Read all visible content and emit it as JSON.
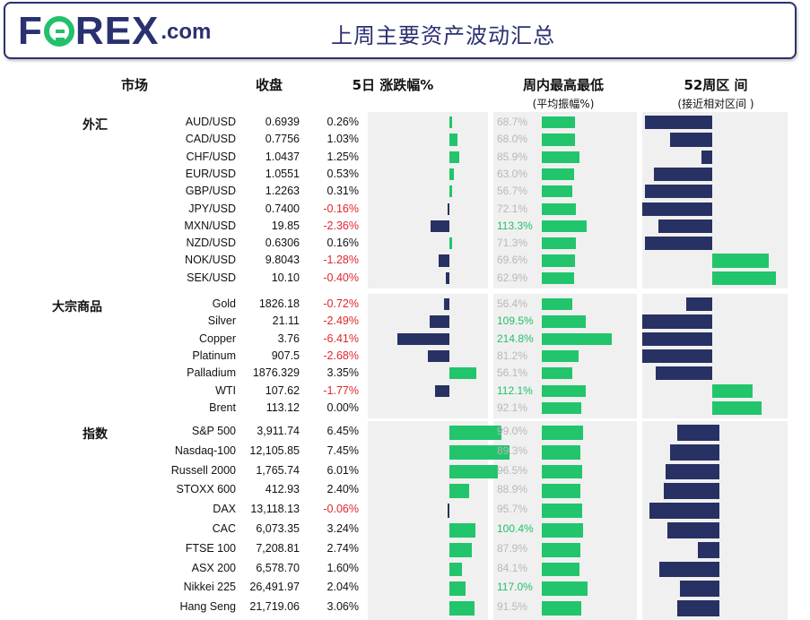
{
  "banner": {
    "logo_main": "FOREX",
    "logo_suffix": ".com",
    "title": "上周主要资产波动汇总"
  },
  "headers": {
    "market": "市场",
    "close": "收盘",
    "change": "5日 涨跌幅%",
    "range": "周内最高最低",
    "range_sub": "(平均振幅%)",
    "week52": "52周区 间",
    "week52_sub": "(接近相对区间 )"
  },
  "colors": {
    "positive_bar": "#22c56b",
    "negative_bar": "#283163",
    "negative_text": "#e0262c",
    "highlight_text": "#22c06a",
    "muted_text": "#b8b8b8",
    "brand": "#2a3170"
  },
  "chart_data": {
    "type": "table",
    "sections": [
      {
        "label": "外汇",
        "rows": [
          {
            "name": "AUD/USD",
            "close": "0.6939",
            "change": "0.26%",
            "change_value": 0.26,
            "range_label": "68.7%",
            "range_value": 68.7,
            "range_highlight": false,
            "w52_start": 0.02,
            "w52_end": 0.48
          },
          {
            "name": "CAD/USD",
            "close": "0.7756",
            "change": "1.03%",
            "change_value": 1.03,
            "range_label": "68.0%",
            "range_value": 68.0,
            "range_highlight": false,
            "w52_start": 0.19,
            "w52_end": 0.48
          },
          {
            "name": "CHF/USD",
            "close": "1.0437",
            "change": "1.25%",
            "change_value": 1.25,
            "range_label": "85.9%",
            "range_value": 85.9,
            "range_highlight": false,
            "w52_start": 0.41,
            "w52_end": 0.48
          },
          {
            "name": "EUR/USD",
            "close": "1.0551",
            "change": "0.53%",
            "change_value": 0.53,
            "range_label": "63.0%",
            "range_value": 63.0,
            "range_highlight": false,
            "w52_start": 0.08,
            "w52_end": 0.48
          },
          {
            "name": "GBP/USD",
            "close": "1.2263",
            "change": "0.31%",
            "change_value": 0.31,
            "range_label": "56.7%",
            "range_value": 56.7,
            "range_highlight": false,
            "w52_start": 0.02,
            "w52_end": 0.48
          },
          {
            "name": "JPY/USD",
            "close": "0.7400",
            "change": "-0.16%",
            "change_value": -0.16,
            "range_label": "72.1%",
            "range_value": 72.1,
            "range_highlight": false,
            "w52_start": 0.0,
            "w52_end": 0.48
          },
          {
            "name": "MXN/USD",
            "close": "19.85",
            "change": "-2.36%",
            "change_value": -2.36,
            "range_label": "113.3%",
            "range_value": 113.3,
            "range_highlight": true,
            "w52_start": 0.11,
            "w52_end": 0.48
          },
          {
            "name": "NZD/USD",
            "close": "0.6306",
            "change": "0.16%",
            "change_value": 0.16,
            "range_label": "71.3%",
            "range_value": 71.3,
            "range_highlight": false,
            "w52_start": 0.02,
            "w52_end": 0.48
          },
          {
            "name": "NOK/USD",
            "close": "9.8043",
            "change": "-1.28%",
            "change_value": -1.28,
            "range_label": "69.6%",
            "range_value": 69.6,
            "range_highlight": false,
            "w52_start": 0.48,
            "w52_end": 0.87
          },
          {
            "name": "SEK/USD",
            "close": "10.10",
            "change": "-0.40%",
            "change_value": -0.4,
            "range_label": "62.9%",
            "range_value": 62.9,
            "range_highlight": false,
            "w52_start": 0.48,
            "w52_end": 0.92
          }
        ]
      },
      {
        "label": "大宗商品",
        "rows": [
          {
            "name": "Gold",
            "close": "1826.18",
            "change": "-0.72%",
            "change_value": -0.72,
            "range_label": "56.4%",
            "range_value": 56.4,
            "range_highlight": false,
            "w52_start": 0.3,
            "w52_end": 0.48
          },
          {
            "name": "Silver",
            "close": "21.11",
            "change": "-2.49%",
            "change_value": -2.49,
            "range_label": "109.5%",
            "range_value": 109.5,
            "range_highlight": true,
            "w52_start": 0.0,
            "w52_end": 0.48
          },
          {
            "name": "Copper",
            "close": "3.76",
            "change": "-6.41%",
            "change_value": -6.41,
            "range_label": "214.8%",
            "range_value": 214.8,
            "range_highlight": true,
            "w52_start": 0.0,
            "w52_end": 0.48
          },
          {
            "name": "Platinum",
            "close": "907.5",
            "change": "-2.68%",
            "change_value": -2.68,
            "range_label": "81.2%",
            "range_value": 81.2,
            "range_highlight": false,
            "w52_start": 0.0,
            "w52_end": 0.48
          },
          {
            "name": "Palladium",
            "close": "1876.329",
            "change": "3.35%",
            "change_value": 3.35,
            "range_label": "56.1%",
            "range_value": 56.1,
            "range_highlight": false,
            "w52_start": 0.09,
            "w52_end": 0.48
          },
          {
            "name": "WTI",
            "close": "107.62",
            "change": "-1.77%",
            "change_value": -1.77,
            "range_label": "112.1%",
            "range_value": 112.1,
            "range_highlight": true,
            "w52_start": 0.48,
            "w52_end": 0.76
          },
          {
            "name": "Brent",
            "close": "113.12",
            "change": "0.00%",
            "change_value": 0.0,
            "range_label": "92.1%",
            "range_value": 92.1,
            "range_highlight": false,
            "w52_start": 0.48,
            "w52_end": 0.82
          }
        ]
      },
      {
        "label": "指数",
        "rows": [
          {
            "name": "S&P 500",
            "close": "3,911.74",
            "change": "6.45%",
            "change_value": 6.45,
            "range_label": "99.0%",
            "range_value": 99.0,
            "range_highlight": false,
            "w52_start": 0.24,
            "w52_end": 0.53
          },
          {
            "name": "Nasdaq-100",
            "close": "12,105.85",
            "change": "7.45%",
            "change_value": 7.45,
            "range_label": "89.3%",
            "range_value": 89.3,
            "range_highlight": false,
            "w52_start": 0.19,
            "w52_end": 0.53
          },
          {
            "name": "Russell 2000",
            "close": "1,765.74",
            "change": "6.01%",
            "change_value": 6.01,
            "range_label": "96.5%",
            "range_value": 96.5,
            "range_highlight": false,
            "w52_start": 0.16,
            "w52_end": 0.53
          },
          {
            "name": "STOXX 600",
            "close": "412.93",
            "change": "2.40%",
            "change_value": 2.4,
            "range_label": "88.9%",
            "range_value": 88.9,
            "range_highlight": false,
            "w52_start": 0.15,
            "w52_end": 0.53
          },
          {
            "name": "DAX",
            "close": "13,118.13",
            "change": "-0.06%",
            "change_value": -0.06,
            "range_label": "95.7%",
            "range_value": 95.7,
            "range_highlight": false,
            "w52_start": 0.05,
            "w52_end": 0.53
          },
          {
            "name": "CAC",
            "close": "6,073.35",
            "change": "3.24%",
            "change_value": 3.24,
            "range_label": "100.4%",
            "range_value": 100.4,
            "range_highlight": true,
            "w52_start": 0.17,
            "w52_end": 0.53
          },
          {
            "name": "FTSE 100",
            "close": "7,208.81",
            "change": "2.74%",
            "change_value": 2.74,
            "range_label": "87.9%",
            "range_value": 87.9,
            "range_highlight": false,
            "w52_start": 0.38,
            "w52_end": 0.53
          },
          {
            "name": "ASX 200",
            "close": "6,578.70",
            "change": "1.60%",
            "change_value": 1.6,
            "range_label": "84.1%",
            "range_value": 84.1,
            "range_highlight": false,
            "w52_start": 0.12,
            "w52_end": 0.53
          },
          {
            "name": "Nikkei 225",
            "close": "26,491.97",
            "change": "2.04%",
            "change_value": 2.04,
            "range_label": "117.0%",
            "range_value": 117.0,
            "range_highlight": true,
            "w52_start": 0.26,
            "w52_end": 0.53
          },
          {
            "name": "Hang Seng",
            "close": "21,719.06",
            "change": "3.06%",
            "change_value": 3.06,
            "range_label": "91.5%",
            "range_value": 91.5,
            "range_highlight": false,
            "w52_start": 0.24,
            "w52_end": 0.53
          }
        ]
      }
    ]
  }
}
